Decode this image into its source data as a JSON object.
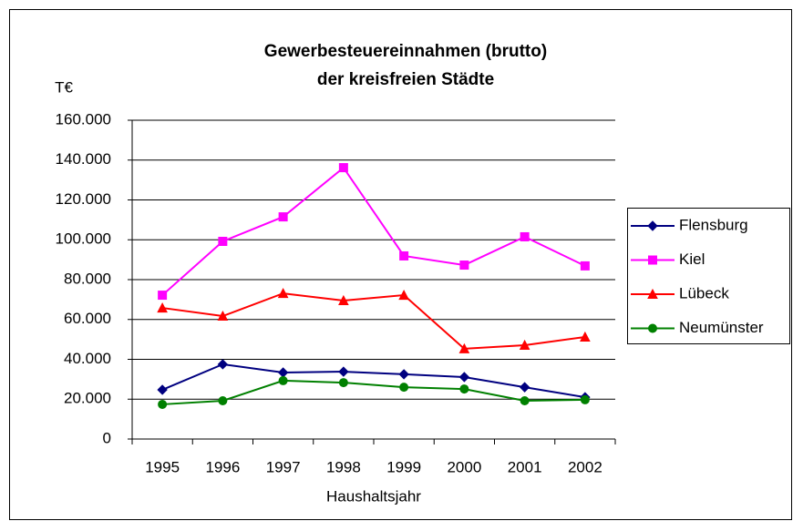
{
  "chart_data": {
    "type": "line",
    "title": [
      "Gewerbesteuereinnahmen (brutto)",
      "der kreisfreien Städte"
    ],
    "ylabel": "T€",
    "xlabel": "Haushaltsjahr",
    "categories": [
      "1995",
      "1996",
      "1997",
      "1998",
      "1999",
      "2000",
      "2001",
      "2002"
    ],
    "series": [
      {
        "name": "Flensburg",
        "color": "#000080",
        "marker": "diamond",
        "values": [
          24700,
          37500,
          33400,
          33800,
          32500,
          31100,
          26000,
          21000
        ]
      },
      {
        "name": "Kiel",
        "color": "#ff00ff",
        "marker": "square",
        "values": [
          72200,
          99200,
          111500,
          136200,
          91900,
          87300,
          101500,
          86900
        ]
      },
      {
        "name": "Lübeck",
        "color": "#ff0000",
        "marker": "triangle",
        "values": [
          65800,
          61700,
          73100,
          69500,
          72200,
          45300,
          47100,
          51200
        ]
      },
      {
        "name": "Neumünster",
        "color": "#008000",
        "marker": "circle",
        "values": [
          17400,
          19200,
          29300,
          28300,
          26000,
          25100,
          19200,
          19700
        ]
      }
    ],
    "ylim": [
      0,
      160000
    ],
    "yticks": [
      0,
      {
        "value": 20000,
        "label": "20.000"
      },
      {
        "value": 40000,
        "label": "40.000"
      },
      {
        "value": 60000,
        "label": "60.000"
      },
      {
        "value": 80000,
        "label": "80.000"
      },
      {
        "value": 100000,
        "label": "100.000"
      },
      {
        "value": 120000,
        "label": "120.000"
      },
      {
        "value": 140000,
        "label": "140.000"
      },
      {
        "value": 160000,
        "label": "160.000"
      }
    ],
    "grid": true,
    "legend": "right"
  }
}
